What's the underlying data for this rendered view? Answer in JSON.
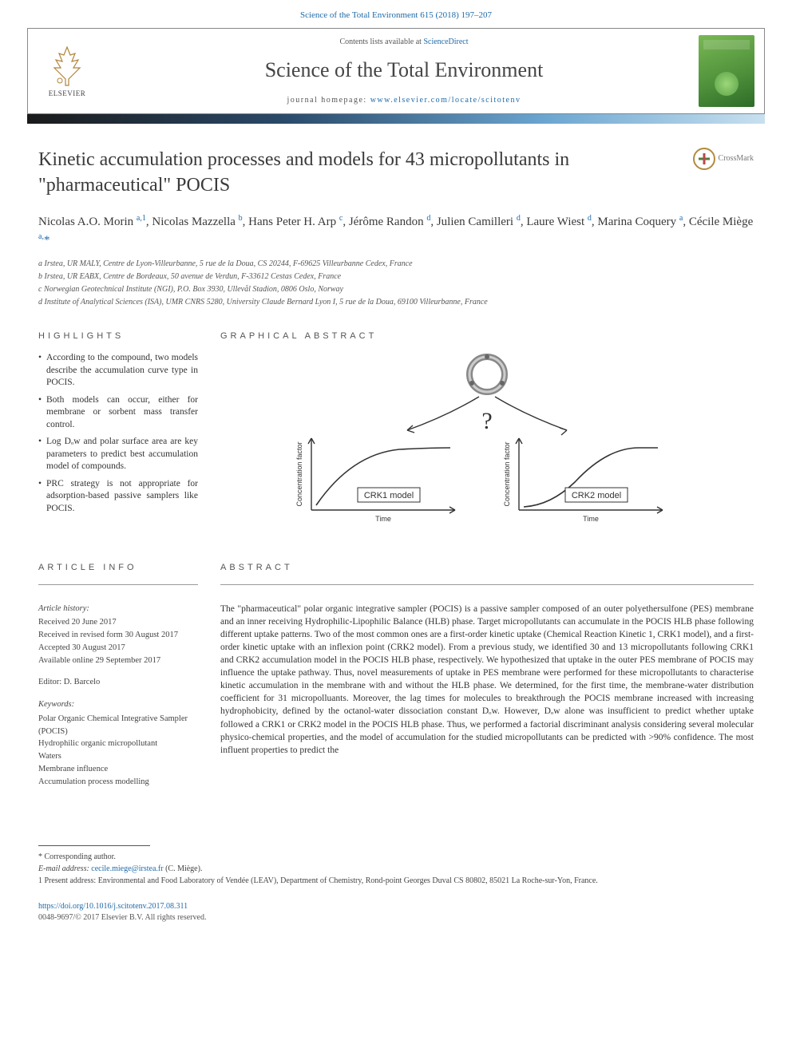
{
  "top_link": "Science of the Total Environment 615 (2018) 197–207",
  "header": {
    "contents_prefix": "Contents lists available at ",
    "contents_link": "ScienceDirect",
    "journal_title": "Science of the Total Environment",
    "homepage_prefix": "journal homepage: ",
    "homepage_link": "www.elsevier.com/locate/scitotenv",
    "elsevier_label": "ELSEVIER"
  },
  "article": {
    "title": "Kinetic accumulation processes and models for 43 micropollutants in \"pharmaceutical\" POCIS",
    "crossmark_label": "CrossMark"
  },
  "authors_html": "Nicolas A.O. Morin <sup>a,1</sup>, Nicolas Mazzella <sup>b</sup>, Hans Peter H. Arp <sup>c</sup>, Jérôme Randon <sup>d</sup>, Julien Camilleri <sup>d</sup>, Laure Wiest <sup>d</sup>, Marina Coquery <sup>a</sup>, Cécile Miège <sup>a,</sup><span class=\"ast\">*</span>",
  "affiliations": [
    "a  Irstea, UR MALY, Centre de Lyon-Villeurbanne, 5 rue de la Doua, CS 20244, F-69625 Villeurbanne Cedex, France",
    "b  Irstea, UR EABX, Centre de Bordeaux, 50 avenue de Verdun, F-33612 Cestas Cedex, France",
    "c  Norwegian Geotechnical Institute (NGI), P.O. Box 3930, Ullevål Stadion, 0806 Oslo, Norway",
    "d  Institute of Analytical Sciences (ISA), UMR CNRS 5280, University Claude Bernard Lyon I, 5 rue de la Doua, 69100 Villeurbanne, France"
  ],
  "highlights": {
    "heading": "HIGHLIGHTS",
    "items": [
      "According to the compound, two models describe the accumulation curve type in POCIS.",
      "Both models can occur, either for membrane or sorbent mass transfer control.",
      "Log Dₒw and polar surface area are key parameters to predict best accumulation model of compounds.",
      "PRC strategy is not appropriate for adsorption-based passive samplers like POCIS."
    ]
  },
  "graphical": {
    "heading": "GRAPHICAL ABSTRACT",
    "top_shape_label": "",
    "question_mark": "?",
    "left_box": "CRK1 model",
    "right_box": "CRK2 model",
    "x_axis": "Time",
    "y_axis": "Concentration factor",
    "colors": {
      "axis": "#333333",
      "curve": "#333333",
      "box_border": "#333333",
      "ring": "#888888"
    }
  },
  "article_info": {
    "heading": "ARTICLE INFO",
    "history_label": "Article history:",
    "received": "Received 20 June 2017",
    "revised": "Received in revised form 30 August 2017",
    "accepted": "Accepted 30 August 2017",
    "online": "Available online 29 September 2017",
    "editor_label": "Editor: D. Barcelo",
    "keywords_label": "Keywords:",
    "keywords": [
      "Polar Organic Chemical Integrative Sampler (POCIS)",
      "Hydrophilic organic micropollutant",
      "Waters",
      "Membrane influence",
      "Accumulation process modelling"
    ]
  },
  "abstract": {
    "heading": "ABSTRACT",
    "text": "The \"pharmaceutical\" polar organic integrative sampler (POCIS) is a passive sampler composed of an outer polyethersulfone (PES) membrane and an inner receiving Hydrophilic-Lipophilic Balance (HLB) phase. Target micropollutants can accumulate in the POCIS HLB phase following different uptake patterns. Two of the most common ones are a first-order kinetic uptake (Chemical Reaction Kinetic 1, CRK1 model), and a first-order kinetic uptake with an inflexion point (CRK2 model). From a previous study, we identified 30 and 13 micropollutants following CRK1 and CRK2 accumulation model in the POCIS HLB phase, respectively. We hypothesized that uptake in the outer PES membrane of POCIS may influence the uptake pathway. Thus, novel measurements of uptake in PES membrane were performed for these micropollutants to characterise kinetic accumulation in the membrane with and without the HLB phase. We determined, for the first time, the membrane-water distribution coefficient for 31 micropolluants. Moreover, the lag times for molecules to breakthrough the POCIS membrane increased with increasing hydrophobicity, defined by the octanol-water dissociation constant Dₒw. However, Dₒw alone was insufficient to predict whether uptake followed a CRK1 or CRK2 model in the POCIS HLB phase. Thus, we performed a factorial discriminant analysis considering several molecular physico-chemical properties, and the model of accumulation for the studied micropollutants can be predicted with >90% confidence. The most influent properties to predict the"
  },
  "footnotes": {
    "corresponding": "*  Corresponding author.",
    "email_label": "E-mail address:",
    "email": "cecile.miege@irstea.fr",
    "email_person": "(C. Miège).",
    "present_address": "1  Present address: Environmental and Food Laboratory of Vendée (LEAV), Department of Chemistry, Rond-point Georges Duval CS 80802, 85021 La Roche-sur-Yon, France."
  },
  "doi": {
    "link": "https://doi.org/10.1016/j.scitotenv.2017.08.311",
    "copyright": "0048-9697/© 2017 Elsevier B.V. All rights reserved."
  }
}
